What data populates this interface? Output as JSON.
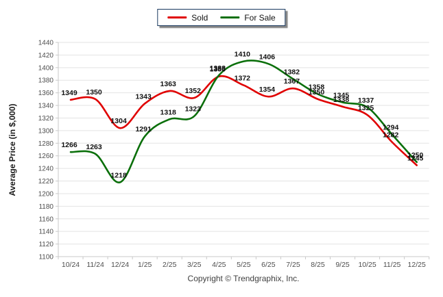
{
  "legend": {
    "items": [
      {
        "label": "Sold",
        "color": "#e00000"
      },
      {
        "label": "For Sale",
        "color": "#0a6f0a"
      }
    ]
  },
  "chart_data": {
    "type": "line",
    "title": "",
    "ylabel": "Average Price (in $,000)",
    "xlabel": "",
    "categories": [
      "10/24",
      "11/24",
      "12/24",
      "1/25",
      "2/25",
      "3/25",
      "4/25",
      "5/25",
      "6/25",
      "7/25",
      "8/25",
      "9/25",
      "10/25",
      "11/25",
      "12/25"
    ],
    "series": [
      {
        "name": "Sold",
        "color": "#e00000",
        "values": [
          1349,
          1350,
          1304,
          1343,
          1363,
          1352,
          1386,
          1372,
          1354,
          1367,
          1350,
          1338,
          1325,
          1282,
          1245
        ]
      },
      {
        "name": "For Sale",
        "color": "#0a6f0a",
        "values": [
          1266,
          1263,
          1218,
          1291,
          1318,
          1323,
          1388,
          1410,
          1406,
          1382,
          1358,
          1345,
          1337,
          1294,
          1250
        ]
      }
    ],
    "ylim": [
      1100,
      1440
    ],
    "ytick_step": 20,
    "y_ticks": [
      1100,
      1120,
      1140,
      1160,
      1180,
      1200,
      1220,
      1240,
      1260,
      1280,
      1300,
      1320,
      1340,
      1360,
      1380,
      1400,
      1420,
      1440
    ],
    "grid": true,
    "smooth": true,
    "data_labels": true,
    "legend_position": "top-center",
    "colors": {
      "gridline": "#e3e3e3",
      "axis": "#c9c9c9",
      "tick_text": "#4d4d4d",
      "label_text": "#111111"
    }
  },
  "footer": {
    "copyright": "Copyright © Trendgraphix, Inc."
  }
}
